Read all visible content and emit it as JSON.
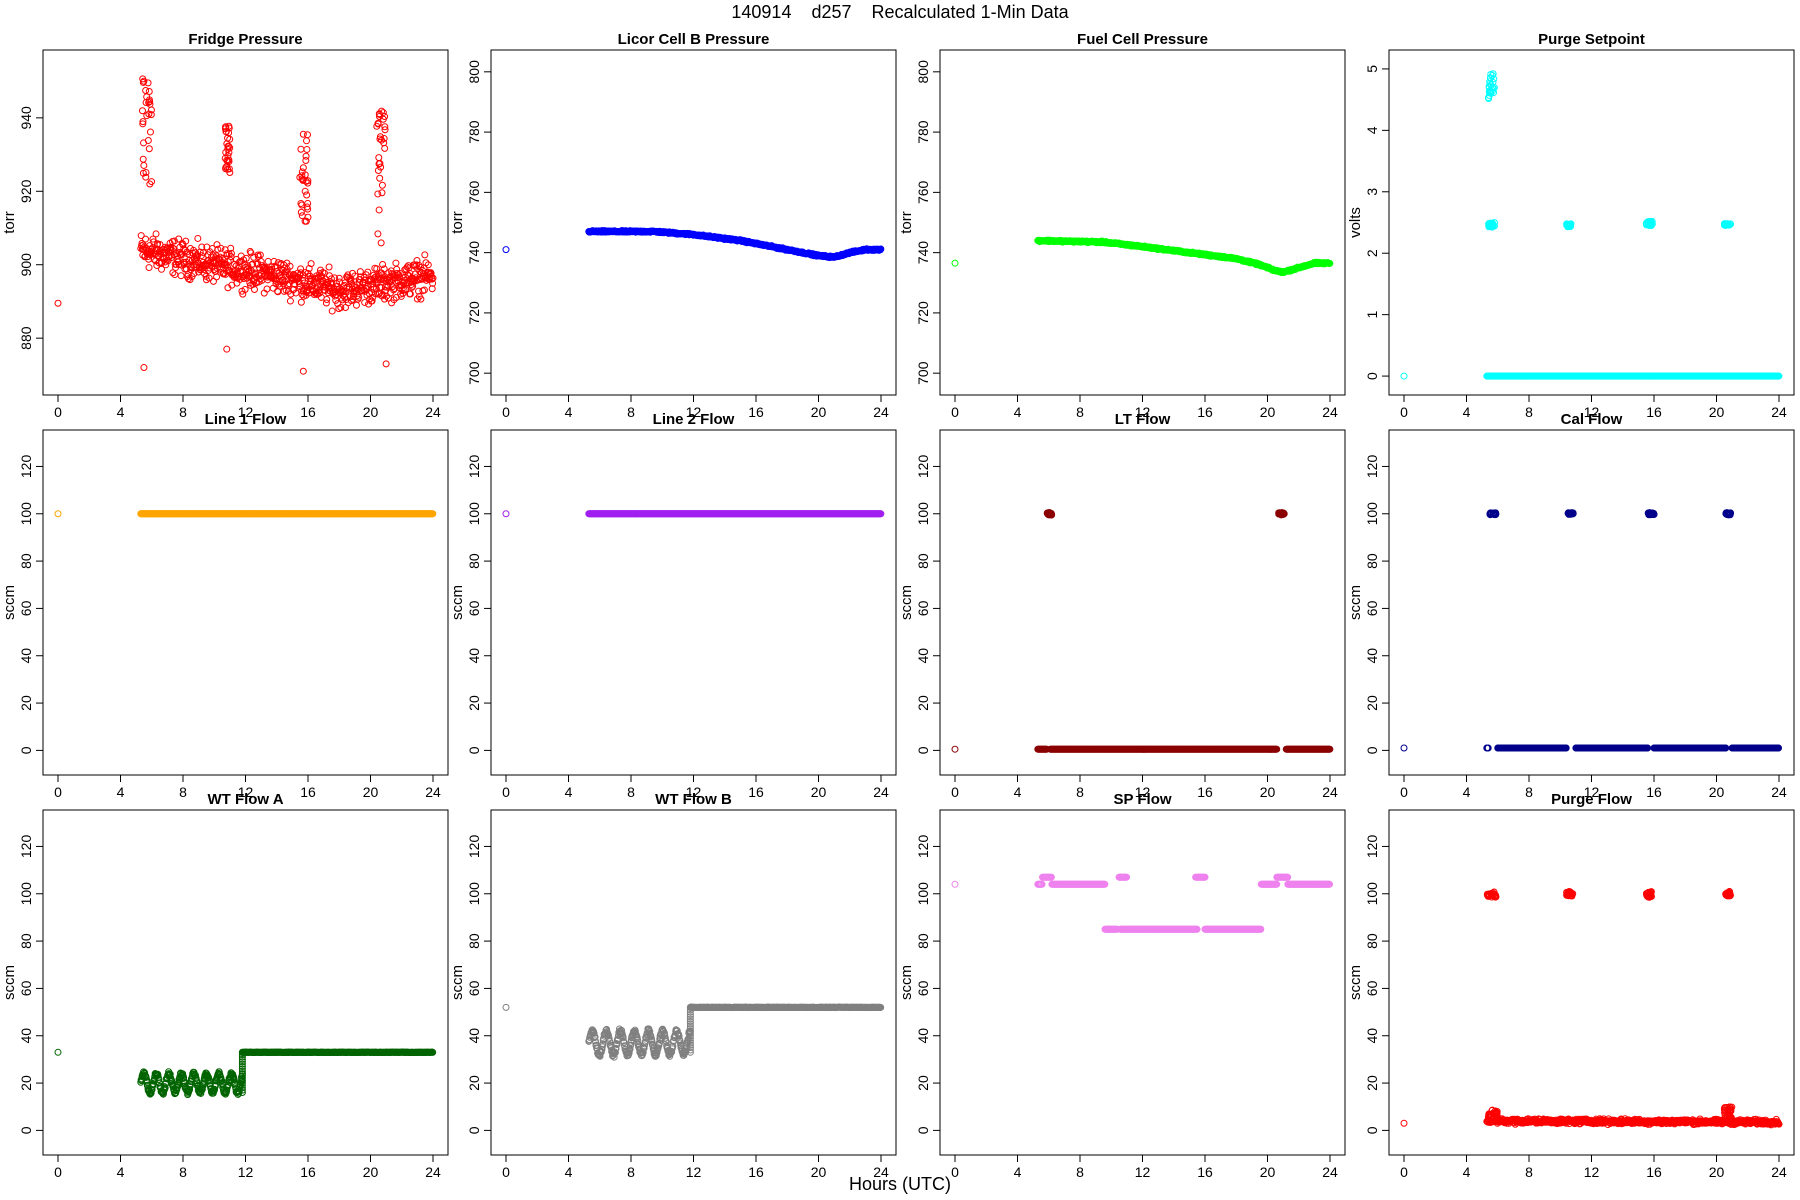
{
  "figure": {
    "title": "140914    d257    Recalculated 1-Min Data",
    "xlabel": "Hours (UTC)"
  },
  "chart_data": [
    {
      "type": "scatter",
      "title": "Fridge Pressure",
      "ylabel": "torr",
      "color": "#ff0000",
      "xlim": [
        0,
        24
      ],
      "ylim": [
        868,
        955
      ],
      "yticks": [
        880,
        900,
        920,
        940
      ],
      "xticks": [
        0,
        4,
        8,
        12,
        16,
        20,
        24
      ],
      "initial_point": [
        0,
        889.5
      ],
      "data_start": 5.3,
      "data_end": 24,
      "pattern": {
        "kind": "noisy",
        "base": [
          [
            5.3,
            904
          ],
          [
            10,
            900
          ],
          [
            14,
            897
          ],
          [
            18,
            893
          ],
          [
            21,
            895
          ],
          [
            24,
            897
          ]
        ],
        "noise": 7,
        "spikes": [
          [
            5.4,
            6.0,
            920,
            951
          ],
          [
            10.7,
            11.0,
            925,
            938
          ],
          [
            15.4,
            16.0,
            910,
            936
          ],
          [
            20.4,
            21.0,
            905,
            942
          ]
        ],
        "outliers": [
          [
            5.5,
            872
          ],
          [
            10.8,
            877
          ],
          [
            15.7,
            871
          ],
          [
            21.0,
            873
          ]
        ]
      }
    },
    {
      "type": "scatter",
      "title": "Licor Cell B Pressure",
      "ylabel": "torr",
      "color": "#0000ff",
      "xlim": [
        0,
        24
      ],
      "ylim": [
        697,
        803
      ],
      "yticks": [
        700,
        720,
        740,
        760,
        780,
        800
      ],
      "xticks": [
        0,
        4,
        8,
        12,
        16,
        20,
        24
      ],
      "initial_point": [
        0,
        741
      ],
      "data_start": 5.3,
      "data_end": 24,
      "pattern": {
        "kind": "line",
        "points": [
          [
            5.3,
            747
          ],
          [
            9.5,
            747
          ],
          [
            12,
            746
          ],
          [
            15,
            744
          ],
          [
            18,
            741
          ],
          [
            20,
            739
          ],
          [
            21,
            738.5
          ],
          [
            22,
            740
          ],
          [
            23,
            741
          ],
          [
            24,
            741
          ]
        ],
        "noise": 0.4
      }
    },
    {
      "type": "scatter",
      "title": "Fuel Cell Pressure",
      "ylabel": "torr",
      "color": "#00ff00",
      "xlim": [
        0,
        24
      ],
      "ylim": [
        697,
        803
      ],
      "yticks": [
        700,
        720,
        740,
        760,
        780,
        800
      ],
      "xticks": [
        0,
        4,
        8,
        12,
        16,
        20,
        24
      ],
      "initial_point": [
        0,
        736.5
      ],
      "data_start": 5.3,
      "data_end": 24,
      "pattern": {
        "kind": "line",
        "points": [
          [
            5.3,
            744
          ],
          [
            9.5,
            743.5
          ],
          [
            12,
            742
          ],
          [
            15,
            740
          ],
          [
            18,
            738
          ],
          [
            19.5,
            736
          ],
          [
            20.5,
            734
          ],
          [
            21,
            733.5
          ],
          [
            22,
            735
          ],
          [
            23,
            736.5
          ],
          [
            24,
            736.5
          ]
        ],
        "noise": 0.4
      }
    },
    {
      "type": "scatter",
      "title": "Purge Setpoint",
      "ylabel": "volts",
      "color": "#00ffff",
      "xlim": [
        0,
        24
      ],
      "ylim": [
        -0.1,
        5.1
      ],
      "yticks": [
        0,
        1,
        2,
        3,
        4,
        5
      ],
      "xticks": [
        0,
        4,
        8,
        12,
        16,
        20,
        24
      ],
      "initial_point": [
        0,
        0
      ],
      "data_start": 5.3,
      "data_end": 24,
      "pattern": {
        "kind": "segments",
        "segments": [
          [
            5.3,
            24,
            0,
            0
          ]
        ],
        "clusters": [
          [
            5.4,
            5.8,
            4.5,
            5.0
          ],
          [
            5.4,
            5.8,
            2.4,
            2.5
          ],
          [
            10.4,
            10.7,
            2.43,
            2.48
          ],
          [
            15.5,
            15.9,
            2.45,
            2.52
          ],
          [
            20.5,
            20.9,
            2.45,
            2.48
          ]
        ]
      }
    },
    {
      "type": "scatter",
      "title": "Line 1 Flow",
      "ylabel": "sccm",
      "color": "#ffa500",
      "xlim": [
        0,
        24
      ],
      "ylim": [
        -5,
        130
      ],
      "yticks": [
        0,
        20,
        40,
        60,
        80,
        100,
        120
      ],
      "xticks": [
        0,
        4,
        8,
        12,
        16,
        20,
        24
      ],
      "initial_point": [
        0,
        100
      ],
      "data_start": 5.3,
      "data_end": 24,
      "pattern": {
        "kind": "segments",
        "segments": [
          [
            5.3,
            24,
            100,
            100
          ]
        ]
      }
    },
    {
      "type": "scatter",
      "title": "Line 2 Flow",
      "ylabel": "sccm",
      "color": "#a020f0",
      "xlim": [
        0,
        24
      ],
      "ylim": [
        -5,
        130
      ],
      "yticks": [
        0,
        20,
        40,
        60,
        80,
        100,
        120
      ],
      "xticks": [
        0,
        4,
        8,
        12,
        16,
        20,
        24
      ],
      "initial_point": [
        0,
        100
      ],
      "data_start": 5.3,
      "data_end": 24,
      "pattern": {
        "kind": "segments",
        "segments": [
          [
            5.3,
            24,
            100,
            100
          ]
        ]
      }
    },
    {
      "type": "scatter",
      "title": "LT Flow",
      "ylabel": "sccm",
      "color": "#8b0000",
      "xlim": [
        0,
        24
      ],
      "ylim": [
        -5,
        130
      ],
      "yticks": [
        0,
        20,
        40,
        60,
        80,
        100,
        120
      ],
      "xticks": [
        0,
        4,
        8,
        12,
        16,
        20,
        24
      ],
      "initial_point": [
        0,
        0.5
      ],
      "data_start": 5.3,
      "data_end": 24,
      "pattern": {
        "kind": "segments",
        "segments": [
          [
            5.3,
            5.9,
            0.5,
            0.5
          ],
          [
            6.1,
            20.6,
            0.5,
            0.5
          ],
          [
            21.2,
            24,
            0.5,
            0.5
          ]
        ],
        "clusters": [
          [
            5.9,
            6.2,
            99.5,
            100.5
          ],
          [
            20.7,
            21.1,
            99.5,
            100.5
          ]
        ]
      }
    },
    {
      "type": "scatter",
      "title": "Cal Flow",
      "ylabel": "sccm",
      "color": "#00008b",
      "xlim": [
        0,
        24
      ],
      "ylim": [
        -5,
        130
      ],
      "yticks": [
        0,
        20,
        40,
        60,
        80,
        100,
        120
      ],
      "xticks": [
        0,
        4,
        8,
        12,
        16,
        20,
        24
      ],
      "initial_point": [
        0,
        1
      ],
      "data_start": 5.3,
      "data_end": 24,
      "pattern": {
        "kind": "segments",
        "segments": [
          [
            5.3,
            5.4,
            1,
            1
          ],
          [
            6.0,
            10.4,
            1,
            1
          ],
          [
            11.0,
            15.6,
            1,
            1
          ],
          [
            16.0,
            20.6,
            1,
            1
          ],
          [
            21.0,
            24,
            1,
            1
          ]
        ],
        "clusters": [
          [
            5.5,
            5.9,
            99.5,
            100.5
          ],
          [
            10.5,
            10.9,
            99.5,
            100.5
          ],
          [
            15.6,
            16.0,
            99.5,
            100.5
          ],
          [
            20.6,
            20.9,
            99.5,
            100.5
          ]
        ]
      }
    },
    {
      "type": "scatter",
      "title": "WT Flow A",
      "ylabel": "sccm",
      "color": "#006400",
      "xlim": [
        0,
        24
      ],
      "ylim": [
        -5,
        130
      ],
      "yticks": [
        0,
        20,
        40,
        60,
        80,
        100,
        120
      ],
      "xticks": [
        0,
        4,
        8,
        12,
        16,
        20,
        24
      ],
      "initial_point": [
        0,
        33
      ],
      "data_start": 5.3,
      "data_end": 24,
      "pattern": {
        "kind": "osc_then_flat",
        "osc_range": [
          5.3,
          11.8
        ],
        "osc_center": 20,
        "osc_amp": 4,
        "osc_period": 0.8,
        "flat_range": [
          11.8,
          24
        ],
        "flat_value": 33
      }
    },
    {
      "type": "scatter",
      "title": "WT Flow B",
      "ylabel": "sccm",
      "color": "#808080",
      "xlim": [
        0,
        24
      ],
      "ylim": [
        -5,
        130
      ],
      "yticks": [
        0,
        20,
        40,
        60,
        80,
        100,
        120
      ],
      "xticks": [
        0,
        4,
        8,
        12,
        16,
        20,
        24
      ],
      "initial_point": [
        0,
        52
      ],
      "data_start": 5.3,
      "data_end": 24,
      "pattern": {
        "kind": "osc_then_flat",
        "osc_range": [
          5.3,
          11.8
        ],
        "osc_center": 37,
        "osc_amp": 5,
        "osc_period": 0.9,
        "flat_range": [
          11.8,
          24
        ],
        "flat_value": 52
      }
    },
    {
      "type": "scatter",
      "title": "SP Flow",
      "ylabel": "sccm",
      "color": "#ee82ee",
      "xlim": [
        0,
        24
      ],
      "ylim": [
        -5,
        130
      ],
      "yticks": [
        0,
        20,
        40,
        60,
        80,
        100,
        120
      ],
      "xticks": [
        0,
        4,
        8,
        12,
        16,
        20,
        24
      ],
      "initial_point": [
        0,
        104
      ],
      "data_start": 5.3,
      "data_end": 24,
      "pattern": {
        "kind": "segments",
        "segments": [
          [
            5.3,
            5.6,
            104,
            104
          ],
          [
            5.6,
            6.2,
            107,
            107
          ],
          [
            6.2,
            9.6,
            104,
            104
          ],
          [
            9.6,
            10.4,
            85,
            85
          ],
          [
            10.5,
            11.0,
            107,
            107
          ],
          [
            10.6,
            15.5,
            85,
            85
          ],
          [
            15.4,
            16.0,
            107,
            107
          ],
          [
            16.0,
            19.6,
            85,
            85
          ],
          [
            19.6,
            20.6,
            104,
            104
          ],
          [
            20.6,
            21.3,
            107,
            107
          ],
          [
            21.3,
            24,
            104,
            104
          ]
        ]
      }
    },
    {
      "type": "scatter",
      "title": "Purge Flow",
      "ylabel": "sccm",
      "color": "#ff0000",
      "xlim": [
        0,
        24
      ],
      "ylim": [
        -5,
        130
      ],
      "yticks": [
        0,
        20,
        40,
        60,
        80,
        100,
        120
      ],
      "xticks": [
        0,
        4,
        8,
        12,
        16,
        20,
        24
      ],
      "initial_point": [
        0,
        3
      ],
      "data_start": 5.3,
      "data_end": 24,
      "pattern": {
        "kind": "noisy",
        "base": [
          [
            5.3,
            4
          ],
          [
            24,
            3.5
          ]
        ],
        "noise": 1.5,
        "spikes": [
          [
            5.4,
            6.0,
            5,
            9
          ],
          [
            20.5,
            21.0,
            5,
            10
          ]
        ],
        "clusters": [
          [
            5.3,
            5.9,
            98.5,
            101
          ],
          [
            10.4,
            10.8,
            99,
            101
          ],
          [
            15.5,
            15.9,
            98.5,
            101
          ],
          [
            20.5,
            20.9,
            99,
            101
          ]
        ]
      }
    }
  ]
}
